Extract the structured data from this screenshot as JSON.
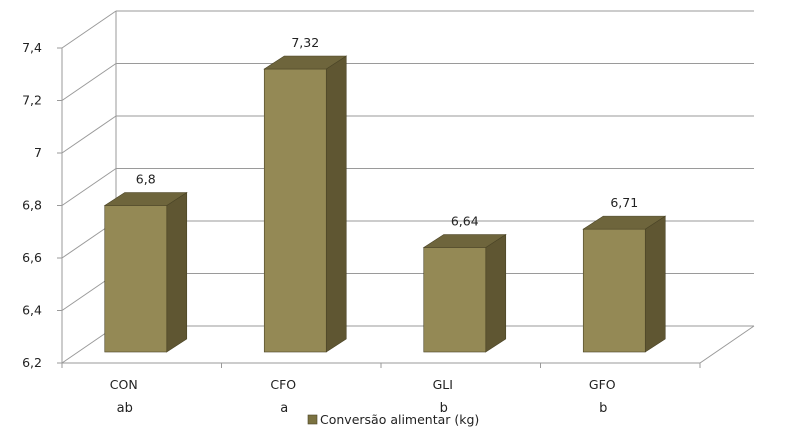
{
  "chart_data": {
    "type": "bar",
    "categories": [
      "CON",
      "CFO",
      "GLI",
      "GFO"
    ],
    "significance_letters": [
      "ab",
      "a",
      "b",
      "b"
    ],
    "series": [
      {
        "name": "Conversão alimentar (kg)",
        "values": [
          6.8,
          7.32,
          6.64,
          6.71
        ]
      }
    ],
    "data_labels": [
      "6,8",
      "7,32",
      "6,64",
      "6,71"
    ],
    "y_ticks": [
      "6,2",
      "6,4",
      "6,6",
      "6,8",
      "7",
      "7,2",
      "7,4"
    ],
    "y_tick_values": [
      6.2,
      6.4,
      6.6,
      6.8,
      7.0,
      7.2,
      7.4
    ],
    "ylim": [
      6.2,
      7.4
    ],
    "grid": true,
    "legend": "bottom",
    "style": "3d-column",
    "colors": {
      "bar_front": "#948955",
      "bar_top": "#6e653c",
      "bar_side": "#5f5632",
      "gridline": "#9a9a9a",
      "legend_swatch": "#7b7241"
    }
  }
}
